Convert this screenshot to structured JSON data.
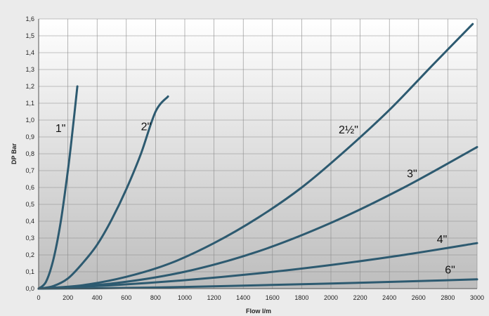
{
  "chart_data": {
    "type": "line",
    "xlabel": "Flow l/m",
    "ylabel": "DP Bar",
    "xlim": [
      0,
      3000
    ],
    "ylim": [
      0,
      1.6
    ],
    "grid": true,
    "x_ticks": [
      0,
      200,
      400,
      600,
      800,
      1000,
      1200,
      1400,
      1600,
      1800,
      2000,
      2200,
      2400,
      2600,
      2800,
      3000
    ],
    "x_tick_labels": [
      "0",
      "200",
      "400",
      "600",
      "800",
      "1000",
      "1200",
      "1400",
      "1600",
      "1800",
      "2000",
      "2200",
      "2400",
      "2600",
      "2800",
      "3000"
    ],
    "y_ticks": [
      0,
      0.1,
      0.2,
      0.3,
      0.4,
      0.5,
      0.6,
      0.7,
      0.8,
      0.9,
      1.0,
      1.1,
      1.2,
      1.3,
      1.4,
      1.5,
      1.6
    ],
    "y_tick_labels": [
      "0,0",
      "0,1",
      "0,2",
      "0,3",
      "0,4",
      "0,5",
      "0,6",
      "0,7",
      "0,8",
      "0,9",
      "1,0",
      "1,1",
      "1,2",
      "1,3",
      "1,4",
      "1,5",
      "1,6"
    ],
    "line_color": "#2d5a70",
    "series": [
      {
        "name": "1\"",
        "x": [
          0,
          50,
          100,
          150,
          200,
          230,
          265
        ],
        "y": [
          0,
          0.04,
          0.17,
          0.39,
          0.7,
          0.92,
          1.2
        ]
      },
      {
        "name": "2\"",
        "x": [
          0,
          100,
          200,
          300,
          400,
          500,
          600,
          700,
          800,
          885
        ],
        "y": [
          0,
          0.015,
          0.06,
          0.15,
          0.26,
          0.41,
          0.59,
          0.8,
          1.05,
          1.14
        ]
      },
      {
        "name": "2½\"",
        "x": [
          0,
          300,
          600,
          900,
          1200,
          1500,
          1800,
          2100,
          2400,
          2700,
          2970
        ],
        "y": [
          0,
          0.02,
          0.07,
          0.15,
          0.27,
          0.42,
          0.6,
          0.82,
          1.06,
          1.33,
          1.57
        ]
      },
      {
        "name": "3\"",
        "x": [
          0,
          500,
          1000,
          1500,
          2000,
          2500,
          3000
        ],
        "y": [
          0,
          0.03,
          0.1,
          0.22,
          0.39,
          0.6,
          0.84
        ]
      },
      {
        "name": "4\"",
        "x": [
          0,
          500,
          1000,
          1500,
          2000,
          2500,
          3000
        ],
        "y": [
          0,
          0.02,
          0.05,
          0.09,
          0.14,
          0.2,
          0.27
        ]
      },
      {
        "name": "6\"",
        "x": [
          0,
          500,
          1000,
          1500,
          2000,
          2500,
          3000
        ],
        "y": [
          0,
          0.003,
          0.01,
          0.02,
          0.03,
          0.042,
          0.055
        ]
      }
    ],
    "annotations": [
      {
        "text": "1\"",
        "x": 150,
        "y": 0.93
      },
      {
        "text": "2\"",
        "x": 735,
        "y": 0.94
      },
      {
        "text": "2½\"",
        "x": 2120,
        "y": 0.92
      },
      {
        "text": "3\"",
        "x": 2555,
        "y": 0.66
      },
      {
        "text": "4\"",
        "x": 2760,
        "y": 0.27
      },
      {
        "text": "6\"",
        "x": 2815,
        "y": 0.09
      }
    ]
  }
}
